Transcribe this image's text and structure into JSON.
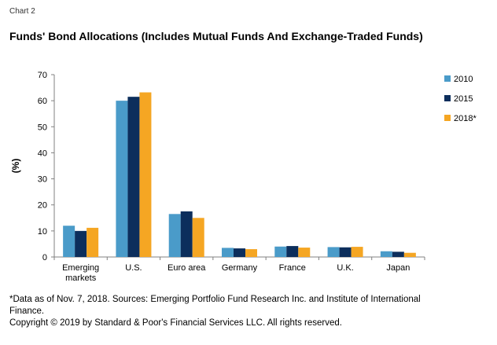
{
  "header": {
    "chart_number": "Chart 2"
  },
  "chart_data": {
    "type": "bar",
    "title": "Funds' Bond Allocations (Includes Mutual Funds And Exchange-Traded Funds)",
    "ylabel": "(%)",
    "xlabel": "",
    "ylim": [
      0,
      70
    ],
    "yticks": [
      0,
      10,
      20,
      30,
      40,
      50,
      60,
      70
    ],
    "grid": false,
    "legend_position": "right",
    "categories": [
      [
        "Emerging",
        "markets"
      ],
      [
        "U.S."
      ],
      [
        "Euro area"
      ],
      [
        "Germany"
      ],
      [
        "France"
      ],
      [
        "U.K."
      ],
      [
        "Japan"
      ]
    ],
    "series": [
      {
        "name": "2010",
        "color": "#4a9bc9",
        "values": [
          12,
          60,
          16.5,
          3.5,
          4,
          3.8,
          2.2
        ]
      },
      {
        "name": "2015",
        "color": "#0c2e5c",
        "values": [
          10,
          61.5,
          17.5,
          3.3,
          4.2,
          3.7,
          2
        ]
      },
      {
        "name": "2018*",
        "color": "#f5a623",
        "values": [
          11.2,
          63.2,
          15,
          3,
          3.6,
          3.9,
          1.6
        ]
      }
    ]
  },
  "footer": {
    "footnote": "*Data as of Nov. 7, 2018. Sources: Emerging Portfolio Fund Research Inc. and Institute of International Finance.",
    "copyright": "Copyright © 2019 by Standard & Poor's Financial Services LLC. All rights reserved."
  }
}
